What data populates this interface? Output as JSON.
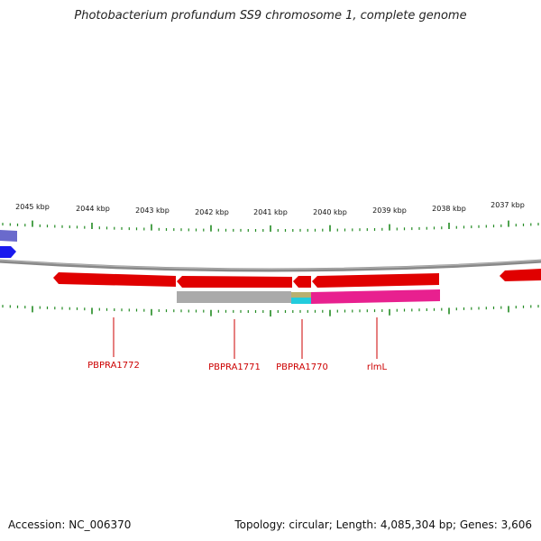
{
  "title": "Photobacterium profundum SS9 chromosome 1, complete genome",
  "footer": {
    "accession": "Accession: NC_006370",
    "topology": "Topology: circular; Length: 4,085,304 bp; Genes: 3,606"
  },
  "ruler": {
    "labels": [
      "2045 kbp",
      "2044 kbp",
      "2043 kbp",
      "2042 kbp",
      "2041 kbp",
      "2040 kbp",
      "2039 kbp",
      "2038 kbp",
      "2037 kbp"
    ],
    "tick_color": "#228b22"
  },
  "genes": [
    {
      "name": "PBPRA1772",
      "label_color": "#cc0000"
    },
    {
      "name": "PBPRA1771",
      "label_color": "#cc0000"
    },
    {
      "name": "PBPRA1770",
      "label_color": "#cc0000"
    },
    {
      "name": "rlmL",
      "label_color": "#cc0000"
    }
  ],
  "colors": {
    "backbone": "#888888",
    "cds": "#e00000",
    "cds_other_strand": "#1a1aee",
    "cds_other_strand_light": "#6a6acc",
    "orthology_pink": "#e8208f",
    "orthology_gray": "#aaaaaa",
    "orthology_olive": "#b8b070",
    "orthology_cyan": "#22ccdd"
  }
}
